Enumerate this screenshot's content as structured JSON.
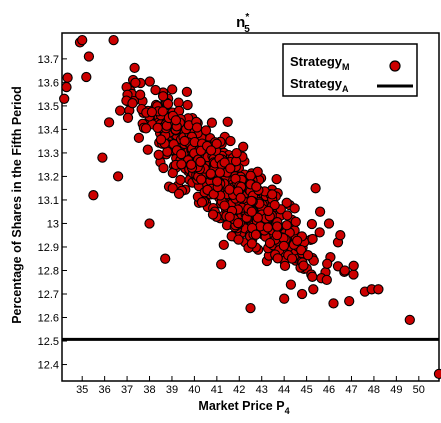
{
  "chart_data": {
    "type": "scatter",
    "title": {
      "base": "n",
      "sup": "*",
      "sub": "5"
    },
    "xlabel": {
      "base": "Market Price P",
      "sub": "4"
    },
    "ylabel": "Percentage of Shares in the Fifth Period",
    "xlim": [
      34.1,
      50.9
    ],
    "ylim": [
      12.33,
      13.81
    ],
    "xticks": [
      35,
      36,
      37,
      38,
      39,
      40,
      41,
      42,
      43,
      44,
      45,
      46,
      47,
      48,
      49,
      50
    ],
    "yticks": [
      "12.4",
      "12.5",
      "12.6",
      "12.7",
      "12.8",
      "12.9",
      "13",
      "13.1",
      "13.2",
      "13.3",
      "13.4",
      "13.5",
      "13.6",
      "13.7"
    ],
    "grid": false,
    "legend": {
      "position": "top-right",
      "entries": [
        {
          "base": "Strategy",
          "sub": "M",
          "marker": "circle"
        },
        {
          "base": "Strategy",
          "sub": "A",
          "marker": "line"
        }
      ]
    },
    "series": [
      {
        "label_ref": "Strategy_M",
        "kind": "scatter",
        "color": "#cc0000",
        "edge_color": "#000000",
        "cloud": {
          "count": 850,
          "x_mean": 41.3,
          "x_sd": 1.75,
          "y_at_mean": 13.18,
          "slope": -0.085,
          "y_resid_sd": 0.085,
          "x_range": [
            34.6,
            47.4
          ],
          "y_range": [
            12.75,
            13.72
          ],
          "seed": 7
        },
        "points": [
          {
            "x": 34.2,
            "y": 13.53
          },
          {
            "x": 34.3,
            "y": 13.58
          },
          {
            "x": 34.35,
            "y": 13.62
          },
          {
            "x": 34.9,
            "y": 13.77
          },
          {
            "x": 35.0,
            "y": 13.78
          },
          {
            "x": 35.3,
            "y": 13.71
          },
          {
            "x": 36.4,
            "y": 13.78
          },
          {
            "x": 35.5,
            "y": 13.12
          },
          {
            "x": 35.9,
            "y": 13.28
          },
          {
            "x": 36.6,
            "y": 13.2
          },
          {
            "x": 36.2,
            "y": 13.43
          },
          {
            "x": 38.0,
            "y": 13.0
          },
          {
            "x": 38.7,
            "y": 12.85
          },
          {
            "x": 42.5,
            "y": 12.64
          },
          {
            "x": 44.0,
            "y": 12.68
          },
          {
            "x": 44.3,
            "y": 12.74
          },
          {
            "x": 44.8,
            "y": 12.7
          },
          {
            "x": 45.3,
            "y": 12.72
          },
          {
            "x": 45.9,
            "y": 12.76
          },
          {
            "x": 46.2,
            "y": 12.66
          },
          {
            "x": 46.9,
            "y": 12.67
          },
          {
            "x": 47.6,
            "y": 12.71
          },
          {
            "x": 47.9,
            "y": 12.72
          },
          {
            "x": 48.2,
            "y": 12.72
          },
          {
            "x": 49.6,
            "y": 12.59
          },
          {
            "x": 50.9,
            "y": 12.36
          },
          {
            "x": 46.7,
            "y": 12.8
          },
          {
            "x": 47.1,
            "y": 12.82
          },
          {
            "x": 46.4,
            "y": 12.92
          },
          {
            "x": 46.0,
            "y": 13.0
          },
          {
            "x": 46.5,
            "y": 12.95
          },
          {
            "x": 45.6,
            "y": 13.05
          },
          {
            "x": 45.4,
            "y": 13.15
          }
        ]
      },
      {
        "label_ref": "Strategy_A",
        "kind": "hline",
        "color": "#000000",
        "y": 12.507
      }
    ]
  }
}
